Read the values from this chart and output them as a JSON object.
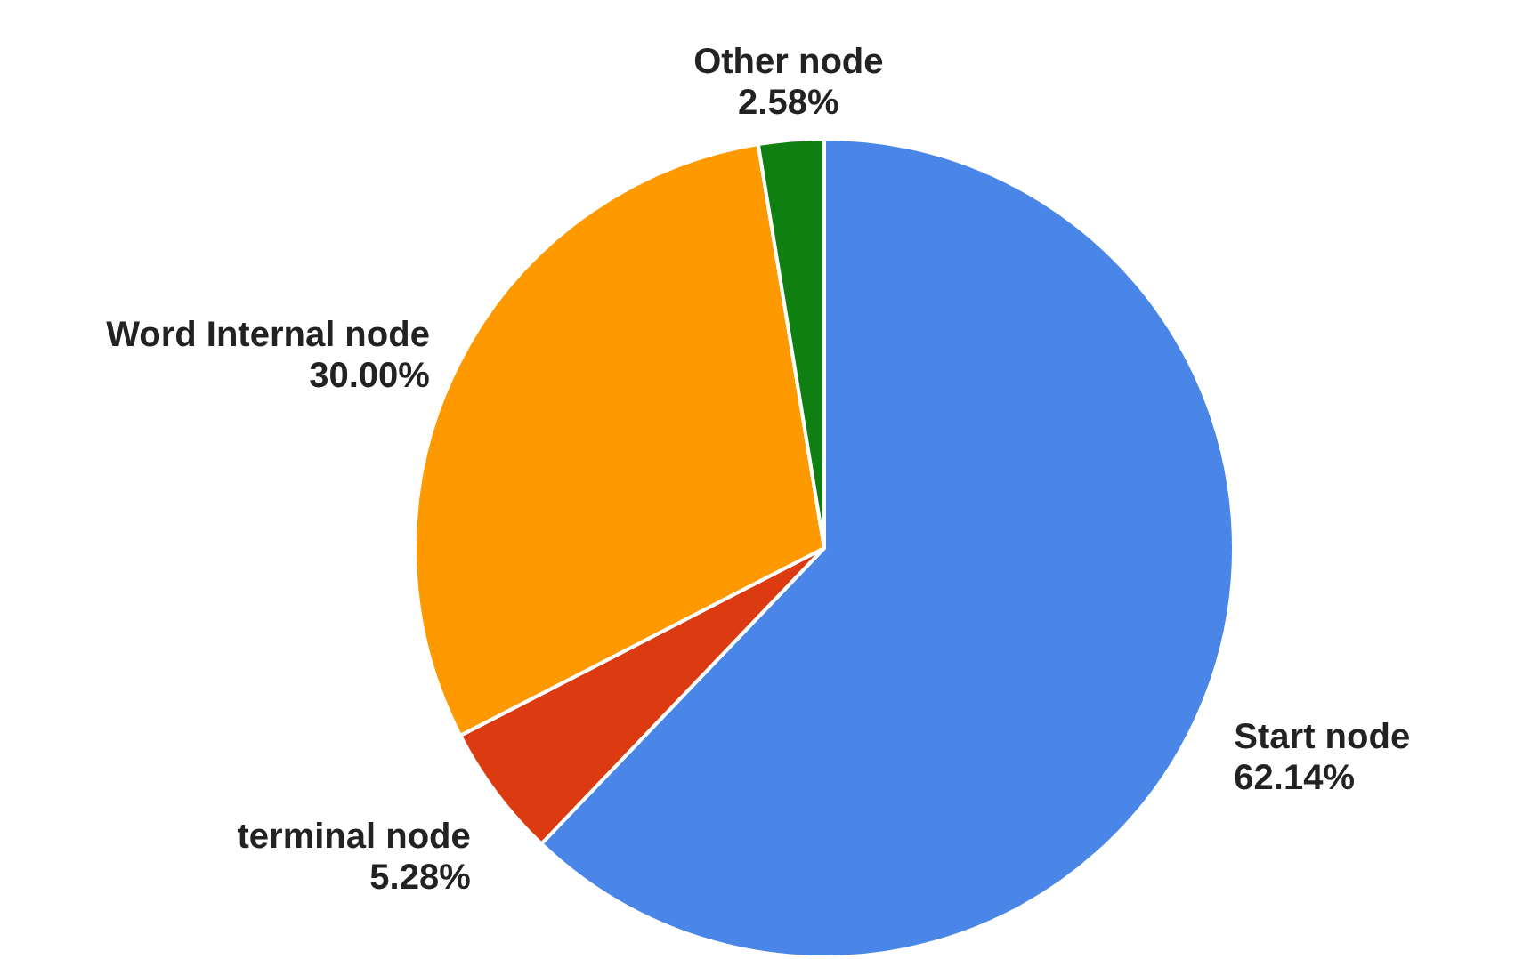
{
  "chart_data": {
    "type": "pie",
    "categories": [
      "Start node",
      "terminal node",
      "Word Internal node",
      "Other node"
    ],
    "values": [
      62.14,
      5.28,
      30.0,
      2.58
    ],
    "value_labels": [
      "62.14%",
      "5.28%",
      "30.00%",
      "2.58%"
    ],
    "colors": [
      "#4a86e8",
      "#dc3b12",
      "#ff9900",
      "#0f7f12"
    ],
    "legend": false
  }
}
